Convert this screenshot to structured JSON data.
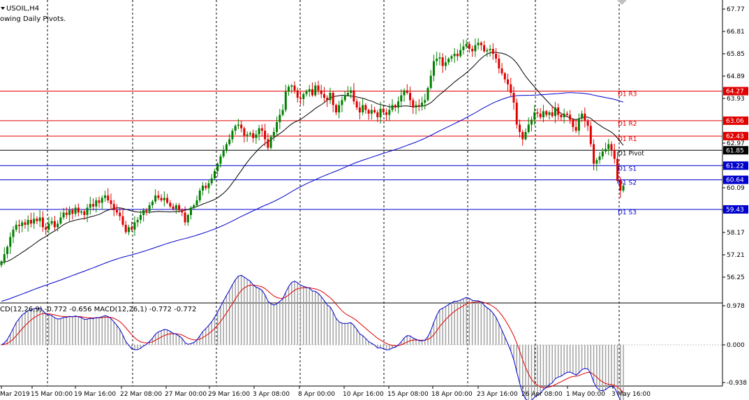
{
  "window": {
    "symbol_title": "USOIL,H4",
    "indicator_note": "owing Daily Pivots.",
    "macd_header": "CD(12,26,9) -0.772 -0.656 MACD(12,26,1) -0.772 -0.772"
  },
  "colors": {
    "background": "#ffffff",
    "bull_candle": "#008000",
    "bear_candle": "#e00000",
    "ma_fast": "#000000",
    "ma_slow": "#0000cc",
    "resistance": "#e00000",
    "support": "#0000cc",
    "pivot": "#000000",
    "macd_hist": "#a0a0a0",
    "macd_signal": "#e00000",
    "macd_main": "#0000cc",
    "time_separator": "#000000"
  },
  "price_axis": {
    "ticks": [
      "67.77",
      "66.81",
      "65.85",
      "64.89",
      "63.93",
      "62.97",
      "61.05",
      "60.09",
      "59.13",
      "58.17",
      "57.21",
      "56.25"
    ]
  },
  "macd_axis": {
    "ticks": [
      "0.978",
      "0.000",
      "-0.938"
    ]
  },
  "pivots": [
    {
      "name": "D1 R3",
      "price": 64.27,
      "tag": "64.27",
      "type": "resistance"
    },
    {
      "name": "D1 R2",
      "price": 63.06,
      "tag": "63.06",
      "type": "resistance"
    },
    {
      "name": "D1 R1",
      "price": 62.43,
      "tag": "62.43",
      "type": "resistance"
    },
    {
      "name": "D1 Pivot",
      "price": 61.85,
      "tag": "61.85",
      "type": "pivot"
    },
    {
      "name": "D1 S1",
      "price": 61.22,
      "tag": "61.22",
      "type": "support"
    },
    {
      "name": "D1 S2",
      "price": 60.64,
      "tag": "60.64",
      "type": "support"
    },
    {
      "name": "D1 S3",
      "price": 59.43,
      "tag": "59.43",
      "type": "support"
    }
  ],
  "time_axis": {
    "labels": [
      "Mar 2019",
      "15 Mar 00:00",
      "19 Mar 16:00",
      "22 Mar 08:00",
      "27 Mar 00:00",
      "29 Mar 16:00",
      "3 Apr 08:00",
      "8 Apr 00:00",
      "10 Apr 16:00",
      "15 Apr 08:00",
      "18 Apr 00:00",
      "23 Apr 16:00",
      "26 Apr 08:00",
      "1 May 00:00",
      "3 May 16:00"
    ]
  },
  "chart_data": {
    "type": "candlestick",
    "symbol": "USOIL",
    "timeframe": "H4",
    "price_range": [
      55.6,
      68.0
    ],
    "closes": [
      57.3,
      57.6,
      57.9,
      58.3,
      58.6,
      58.8,
      58.75,
      58.9,
      58.8,
      59.0,
      58.85,
      59.05,
      58.95,
      59.1,
      58.7,
      58.6,
      58.85,
      58.95,
      58.7,
      58.85,
      59.1,
      59.3,
      59.2,
      59.4,
      59.25,
      59.5,
      59.3,
      59.35,
      59.2,
      59.5,
      59.65,
      59.55,
      59.8,
      59.7,
      59.9,
      60.0,
      59.8,
      59.65,
      59.4,
      59.3,
      59.15,
      58.8,
      58.5,
      58.7,
      58.6,
      58.9,
      59.0,
      59.2,
      59.4,
      59.35,
      59.6,
      59.75,
      60.0,
      59.9,
      59.8,
      59.9,
      59.7,
      59.55,
      59.45,
      59.6,
      59.4,
      59.3,
      58.9,
      59.2,
      59.5,
      59.6,
      59.8,
      60.2,
      60.4,
      60.3,
      60.5,
      60.7,
      61.0,
      61.3,
      61.6,
      61.85,
      62.1,
      62.3,
      62.65,
      62.85,
      62.9,
      62.75,
      62.45,
      62.5,
      62.55,
      62.35,
      62.5,
      62.75,
      62.65,
      62.3,
      61.95,
      62.4,
      62.6,
      63.0,
      63.3,
      63.5,
      64.25,
      64.45,
      64.5,
      64.3,
      64.0,
      63.95,
      64.15,
      64.25,
      64.35,
      64.1,
      64.5,
      64.3,
      64.15,
      64.0,
      63.9,
      64.2,
      63.7,
      63.4,
      63.7,
      63.9,
      64.1,
      64.2,
      64.3,
      63.85,
      63.6,
      63.4,
      63.7,
      63.5,
      63.35,
      63.5,
      63.4,
      63.2,
      63.55,
      63.4,
      63.3,
      63.5,
      63.7,
      63.6,
      63.85,
      64.1,
      64.3,
      64.2,
      63.9,
      63.6,
      63.7,
      63.65,
      63.8,
      63.9,
      64.4,
      64.9,
      65.5,
      65.6,
      65.65,
      65.3,
      65.45,
      65.6,
      65.7,
      65.8,
      65.7,
      65.95,
      66.1,
      66.2,
      66.0,
      65.9,
      66.15,
      66.25,
      66.15,
      65.9,
      65.95,
      66.0,
      65.8,
      65.6,
      65.2,
      65.0,
      64.75,
      64.55,
      64.2,
      63.8,
      62.9,
      62.6,
      62.3,
      62.6,
      62.9,
      63.1,
      63.4,
      63.35,
      63.2,
      63.45,
      63.3,
      63.4,
      63.25,
      63.6,
      63.3,
      63.2,
      63.35,
      63.3,
      63.1,
      62.8,
      62.65,
      63.15,
      63.35,
      63.05,
      62.85,
      62.1,
      61.3,
      61.45,
      61.6,
      61.8,
      61.9,
      62.1,
      61.85,
      61.5,
      60.6,
      60.2,
      60.4
    ]
  }
}
